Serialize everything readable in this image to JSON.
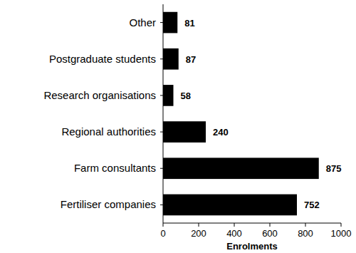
{
  "chart_data": {
    "type": "bar",
    "orientation": "horizontal",
    "categories": [
      "Other",
      "Postgraduate students",
      "Research organisations",
      "Regional authorities",
      "Farm consultants",
      "Fertiliser companies"
    ],
    "values": [
      81,
      87,
      58,
      240,
      875,
      752
    ],
    "color": "#000000",
    "x_label": "Enrolments",
    "xlim": [
      0,
      1000
    ],
    "xticks": [
      0,
      200,
      400,
      600,
      800,
      1000
    ],
    "grid": false,
    "data_labels": true
  }
}
